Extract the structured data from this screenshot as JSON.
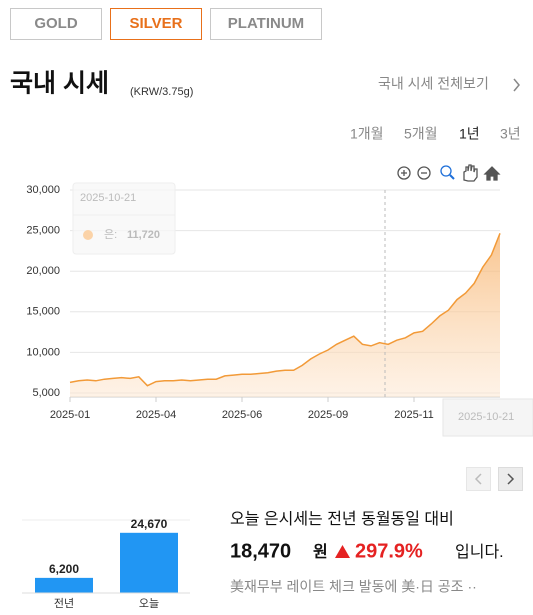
{
  "tabs": [
    "GOLD",
    "SILVER",
    "PLATINUM"
  ],
  "header": {
    "title": "국내 시세",
    "unit": "(KRW/3.75g)",
    "link": "국내 시세 전체보기"
  },
  "periods": [
    "1개월",
    "5개월",
    "1년",
    "3년"
  ],
  "chart_data": [
    {
      "type": "line",
      "color": "#f29a38",
      "values": [
        6300,
        6500,
        6600,
        6500,
        6700,
        6800,
        6900,
        6800,
        7000,
        5900,
        6400,
        6500,
        6500,
        6600,
        6500,
        6600,
        6700,
        6700,
        7100,
        7200,
        7300,
        7300,
        7400,
        7500,
        7700,
        7800,
        7800,
        8400,
        9200,
        9800,
        10300,
        11000,
        11500,
        12000,
        11000,
        10800,
        11200,
        11000,
        11500,
        11800,
        12400,
        12600,
        13500,
        14500,
        15200,
        16500,
        17300,
        18500,
        20500,
        22000,
        24670
      ],
      "xlim": [
        0,
        50
      ],
      "xticks": [
        {
          "value": 0,
          "label": "2025-01"
        },
        {
          "value": 10,
          "label": "2025-04"
        },
        {
          "value": 20,
          "label": "2025-06"
        },
        {
          "value": 30,
          "label": "2025-09"
        },
        {
          "value": 40,
          "label": "2025-11"
        }
      ],
      "ylim": [
        5000,
        30000
      ],
      "yticks": [
        {
          "value": 5000,
          "label": "5,000"
        },
        {
          "value": 10000,
          "label": "10,000"
        },
        {
          "value": 15000,
          "label": "15,000"
        },
        {
          "value": 20000,
          "label": "20,000"
        },
        {
          "value": 25000,
          "label": "25,000"
        },
        {
          "value": 30000,
          "label": "30,000"
        }
      ],
      "grid": true
    },
    {
      "type": "bar",
      "color": "#2196f3",
      "categories": [
        "전년",
        "오늘"
      ],
      "values": [
        6200,
        24670
      ],
      "value_labels": [
        "6,200",
        "24,670"
      ],
      "ylim": [
        0,
        25000
      ]
    }
  ],
  "tooltip": {
    "date": "2025-10-21",
    "label": "은:",
    "value": "11,720"
  },
  "crosshair_label": "2025-10-21",
  "summary": {
    "lead": "오늘 은시세는 전년 동월동일 대비",
    "diff": "18,470",
    "unit": "원",
    "rate": "297.9%",
    "tail": "입니다.",
    "news": "美재무부 레이트 체크 발동에 美·日 공조 ··"
  }
}
